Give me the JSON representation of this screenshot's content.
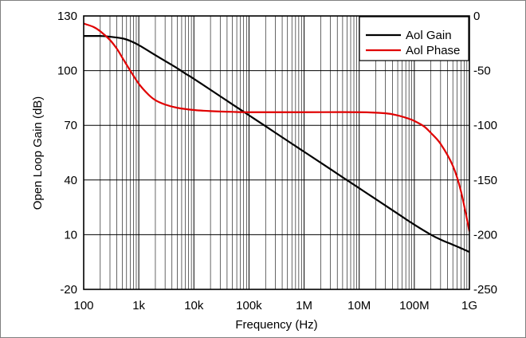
{
  "chart_data": {
    "type": "line",
    "title": "",
    "xlabel": "Frequency (Hz)",
    "ylabel": "Open Loop Gain (dB)",
    "y2label": "",
    "xscale": "log",
    "xlim": [
      100,
      1000000000
    ],
    "ylim": [
      -20,
      130
    ],
    "y2lim": [
      -250,
      0
    ],
    "grid": true,
    "legend": "top-right",
    "x_ticks": [
      {
        "value": 100,
        "label": "100"
      },
      {
        "value": 1000,
        "label": "1k"
      },
      {
        "value": 10000,
        "label": "10k"
      },
      {
        "value": 100000,
        "label": "100k"
      },
      {
        "value": 1000000,
        "label": "1M"
      },
      {
        "value": 10000000,
        "label": "10M"
      },
      {
        "value": 100000000,
        "label": "100M"
      },
      {
        "value": 1000000000,
        "label": "1G"
      }
    ],
    "y_ticks": [
      {
        "value": 130,
        "label": "130"
      },
      {
        "value": 100,
        "label": "100"
      },
      {
        "value": 70,
        "label": "70"
      },
      {
        "value": 40,
        "label": "40"
      },
      {
        "value": 10,
        "label": "10"
      },
      {
        "value": -20,
        "label": "-20"
      }
    ],
    "y2_ticks": [
      {
        "value": 0,
        "label": "0"
      },
      {
        "value": -50,
        "label": "-50"
      },
      {
        "value": -100,
        "label": "-100"
      },
      {
        "value": -150,
        "label": "-150"
      },
      {
        "value": -200,
        "label": "-200"
      },
      {
        "value": -250,
        "label": "-250"
      }
    ],
    "series": [
      {
        "name": "Aol Gain",
        "axis": "left",
        "color": "#000000",
        "x": [
          100,
          200,
          300,
          500,
          700,
          1000,
          2000,
          3000,
          5000,
          7000,
          10000,
          20000,
          50000,
          100000,
          200000,
          500000,
          1000000,
          2000000,
          5000000,
          10000000,
          20000000,
          50000000,
          100000000,
          200000000,
          300000000,
          500000000,
          700000000,
          1000000000
        ],
        "values": [
          119,
          119,
          118.6,
          117.7,
          116.3,
          114,
          108.5,
          105.3,
          101.3,
          98.4,
          95.5,
          89.5,
          81.5,
          75.5,
          69.5,
          61.5,
          55.5,
          49.5,
          41.5,
          35.5,
          29.5,
          21.5,
          15.5,
          10,
          7.3,
          4.5,
          2.6,
          0.5
        ]
      },
      {
        "name": "Aol Phase",
        "axis": "right",
        "color": "#e00000",
        "x": [
          100,
          150,
          200,
          300,
          400,
          500,
          700,
          1000,
          1500,
          2000,
          3000,
          5000,
          10000,
          20000,
          50000,
          100000,
          1000000,
          10000000,
          30000000,
          50000000,
          80000000,
          100000000,
          150000000,
          200000000,
          300000000,
          500000000,
          700000000,
          1000000000
        ],
        "values": [
          -7,
          -10,
          -14,
          -22,
          -30,
          -38,
          -50,
          -62,
          -72,
          -77,
          -81,
          -84,
          -86,
          -87,
          -87.7,
          -88,
          -88,
          -88,
          -89,
          -91,
          -94,
          -96,
          -101,
          -107,
          -117,
          -137,
          -160,
          -197
        ]
      }
    ]
  }
}
